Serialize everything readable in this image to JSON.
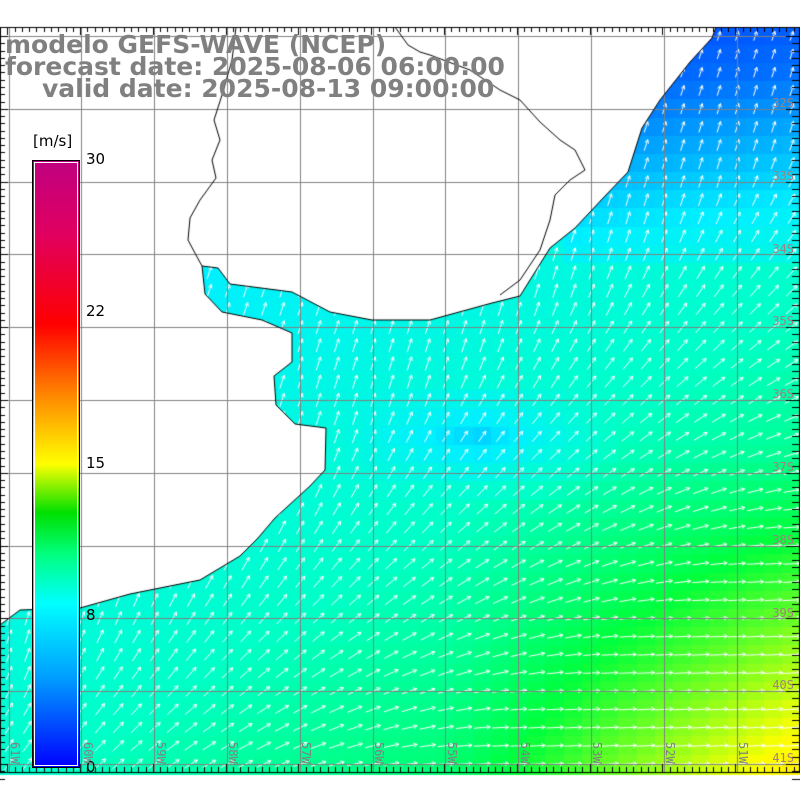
{
  "header": {
    "model": "modelo GEFS-WAVE (NCEP)",
    "forecast_date": "forecast date: 2025-08-06 06:00:00",
    "valid_date": "valid date: 2025-08-13 09:00:00"
  },
  "colorbar": {
    "unit": "[m/s]",
    "ticks": [
      "30",
      "22",
      "15",
      "8",
      "0"
    ],
    "tick_values": [
      30,
      22,
      15,
      8,
      0
    ],
    "colors": {
      "min": "#0000ff",
      "low": "#00ffff",
      "mid": "#00ff00",
      "high": "#ffff00",
      "higher": "#ff0000",
      "max": "#c00080"
    }
  },
  "axes": {
    "lat_labels": [
      "32S",
      "33S",
      "34S",
      "35S",
      "36S",
      "37S",
      "38S",
      "39S",
      "40S",
      "41S"
    ],
    "lon_labels": [
      "61W",
      "60W",
      "59W",
      "58W",
      "57W",
      "56W",
      "55W",
      "54W",
      "53W",
      "52W",
      "51W"
    ]
  },
  "field": {
    "variable": "wind speed",
    "land_color": "#ffffff",
    "coast_color": "#000000",
    "grid_color": "#808080",
    "arrow_color": "#ffffff"
  }
}
